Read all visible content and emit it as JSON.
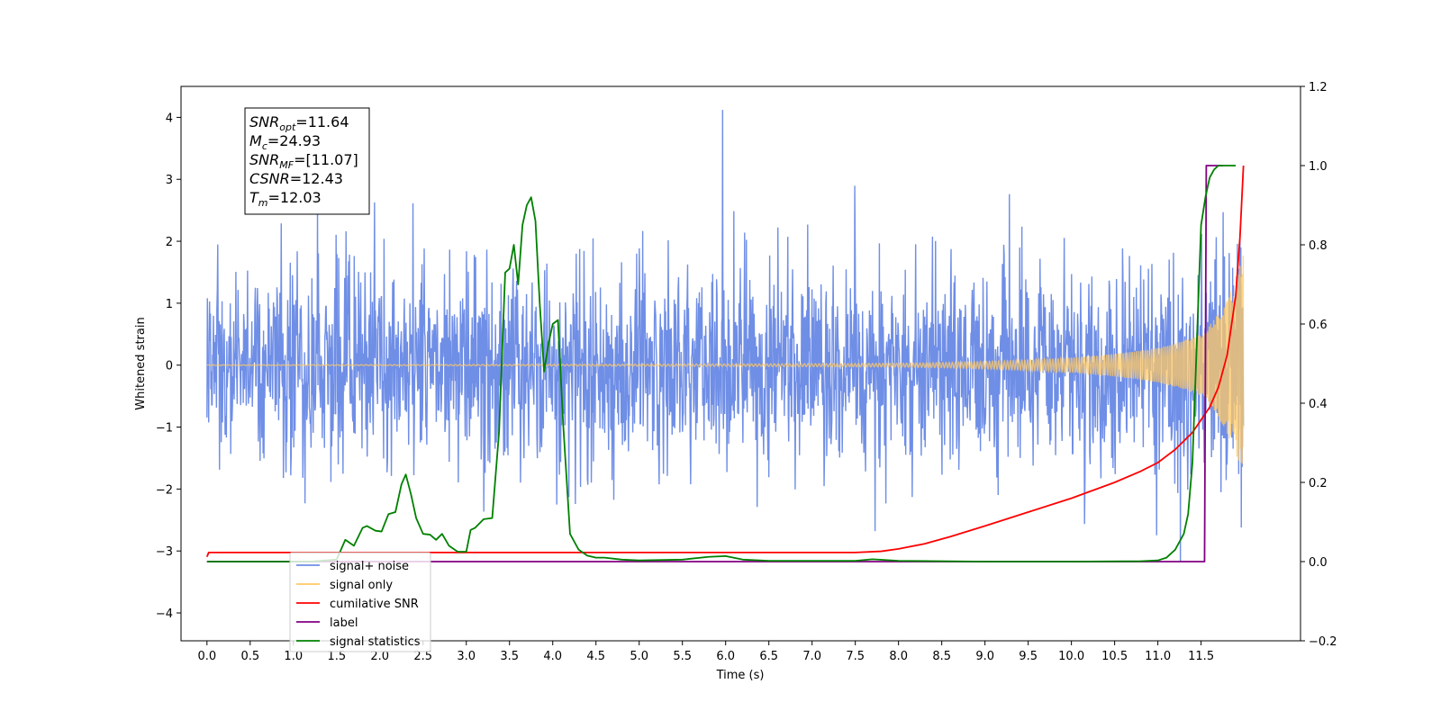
{
  "chart_data": {
    "type": "line",
    "xlabel": "Time (s)",
    "ylabel": "Whitened strain",
    "xlim": [
      -0.3,
      12.65
    ],
    "ylim_left": [
      -4.45,
      4.5
    ],
    "ylim_right": [
      -0.2,
      1.2
    ],
    "x_ticks": [
      0.0,
      0.5,
      1.0,
      1.5,
      2.0,
      2.5,
      3.0,
      3.5,
      4.0,
      4.5,
      5.0,
      5.5,
      6.0,
      6.5,
      7.0,
      7.5,
      8.0,
      8.5,
      9.0,
      9.5,
      10.0,
      10.5,
      11.0,
      11.5
    ],
    "x_tick_labels": [
      "0.0",
      "0.5",
      "1.0",
      "1.5",
      "2.0",
      "2.5",
      "3.0",
      "3.5",
      "4.0",
      "4.5",
      "5.0",
      "5.5",
      "6.0",
      "6.5",
      "7.0",
      "7.5",
      "8.0",
      "8.5",
      "9.0",
      "9.5",
      "10.0",
      "10.5",
      "11.0",
      "11.5"
    ],
    "y_left_ticks": [
      -4,
      -3,
      -2,
      -1,
      0,
      1,
      2,
      3,
      4
    ],
    "y_left_tick_labels": [
      "−4",
      "−3",
      "−2",
      "−1",
      "0",
      "1",
      "2",
      "3",
      "4"
    ],
    "y_right_ticks": [
      -0.2,
      0.0,
      0.2,
      0.4,
      0.6,
      0.8,
      1.0,
      1.2
    ],
    "y_right_tick_labels": [
      "−0.2",
      "0.0",
      "0.2",
      "0.4",
      "0.6",
      "0.8",
      "1.0",
      "1.2"
    ],
    "grid": false,
    "legend_position": "lower-left",
    "legend": [
      {
        "name": "signal+ noise",
        "color": "#6f8ee6"
      },
      {
        "name": "signal only",
        "color": "#ffc864"
      },
      {
        "name": "cumilative SNR",
        "color": "#ff0000"
      },
      {
        "name": "label",
        "color": "#800080"
      },
      {
        "name": "signal statistics",
        "color": "#008000"
      }
    ],
    "series": [
      {
        "name": "signal+ noise",
        "axis": "left",
        "color": "#6f8ee6",
        "description_values": {
          "x_start": 0.0,
          "x_end": 11.99,
          "amplitude_typical": 1.5,
          "max": 4.12,
          "min": -4.05
        }
      },
      {
        "name": "signal only",
        "axis": "left",
        "color": "#ffc864",
        "description_values": {
          "x_start": 0.0,
          "x_end": 11.99,
          "envelope_at_8": 0.03,
          "envelope_at_10": 0.12,
          "envelope_at_11": 0.28,
          "envelope_at_11_5": 0.5,
          "envelope_at_11_99": 1.8
        }
      },
      {
        "name": "cumilative SNR",
        "axis": "right",
        "color": "#ff0000",
        "x": [
          0.0,
          0.02,
          7.5,
          7.8,
          8.0,
          8.3,
          8.6,
          9.0,
          9.5,
          10.0,
          10.5,
          10.8,
          11.0,
          11.2,
          11.4,
          11.6,
          11.7,
          11.8,
          11.9,
          11.95,
          11.99
        ],
        "y": [
          0.012,
          0.023,
          0.023,
          0.026,
          0.032,
          0.045,
          0.063,
          0.09,
          0.125,
          0.16,
          0.2,
          0.228,
          0.25,
          0.283,
          0.326,
          0.39,
          0.44,
          0.52,
          0.67,
          0.82,
          1.0
        ]
      },
      {
        "name": "label",
        "axis": "right",
        "color": "#800080",
        "x": [
          0.0,
          11.54,
          11.56,
          11.75
        ],
        "y": [
          0.0,
          0.0,
          1.0,
          1.0
        ]
      },
      {
        "name": "signal statistics",
        "axis": "right",
        "color": "#008000",
        "x": [
          0.0,
          1.2,
          1.5,
          1.6,
          1.7,
          1.8,
          1.85,
          1.95,
          2.02,
          2.1,
          2.18,
          2.25,
          2.3,
          2.36,
          2.42,
          2.5,
          2.58,
          2.65,
          2.72,
          2.8,
          2.9,
          3.0,
          3.05,
          3.1,
          3.2,
          3.3,
          3.38,
          3.45,
          3.5,
          3.55,
          3.6,
          3.65,
          3.7,
          3.75,
          3.8,
          3.85,
          3.9,
          3.95,
          4.0,
          4.06,
          4.12,
          4.2,
          4.3,
          4.4,
          4.5,
          4.6,
          4.8,
          5.0,
          5.5,
          5.8,
          6.0,
          6.2,
          6.5,
          7.0,
          7.5,
          7.7,
          8.0,
          9.0,
          10.0,
          10.8,
          11.0,
          11.1,
          11.2,
          11.3,
          11.35,
          11.4,
          11.45,
          11.5,
          11.55,
          11.6,
          11.65,
          11.7,
          11.75,
          11.8,
          11.9
        ],
        "y": [
          0.0,
          0.0,
          0.005,
          0.055,
          0.04,
          0.085,
          0.09,
          0.078,
          0.076,
          0.12,
          0.125,
          0.195,
          0.22,
          0.17,
          0.11,
          0.07,
          0.068,
          0.055,
          0.07,
          0.04,
          0.025,
          0.025,
          0.08,
          0.085,
          0.107,
          0.11,
          0.33,
          0.73,
          0.74,
          0.8,
          0.7,
          0.85,
          0.9,
          0.92,
          0.86,
          0.65,
          0.48,
          0.55,
          0.6,
          0.61,
          0.35,
          0.07,
          0.03,
          0.015,
          0.01,
          0.01,
          0.005,
          0.003,
          0.005,
          0.012,
          0.014,
          0.005,
          0.002,
          0.002,
          0.002,
          0.006,
          0.002,
          0.0,
          0.0,
          0.001,
          0.003,
          0.01,
          0.03,
          0.07,
          0.12,
          0.25,
          0.55,
          0.85,
          0.92,
          0.97,
          0.99,
          1.0,
          1.0,
          1.0,
          1.0
        ]
      }
    ]
  },
  "annotation": {
    "lines": [
      {
        "sym": "SNR",
        "sub": "opt",
        "val": "=11.64"
      },
      {
        "sym": "M",
        "sub": "c",
        "val": "=24.93"
      },
      {
        "sym": "SNR",
        "sub": "MF",
        "val": "=[11.07]"
      },
      {
        "sym": "CSNR",
        "sub": "",
        "val": "=12.43"
      },
      {
        "sym": "T",
        "sub": "m",
        "val": "=12.03"
      }
    ]
  }
}
